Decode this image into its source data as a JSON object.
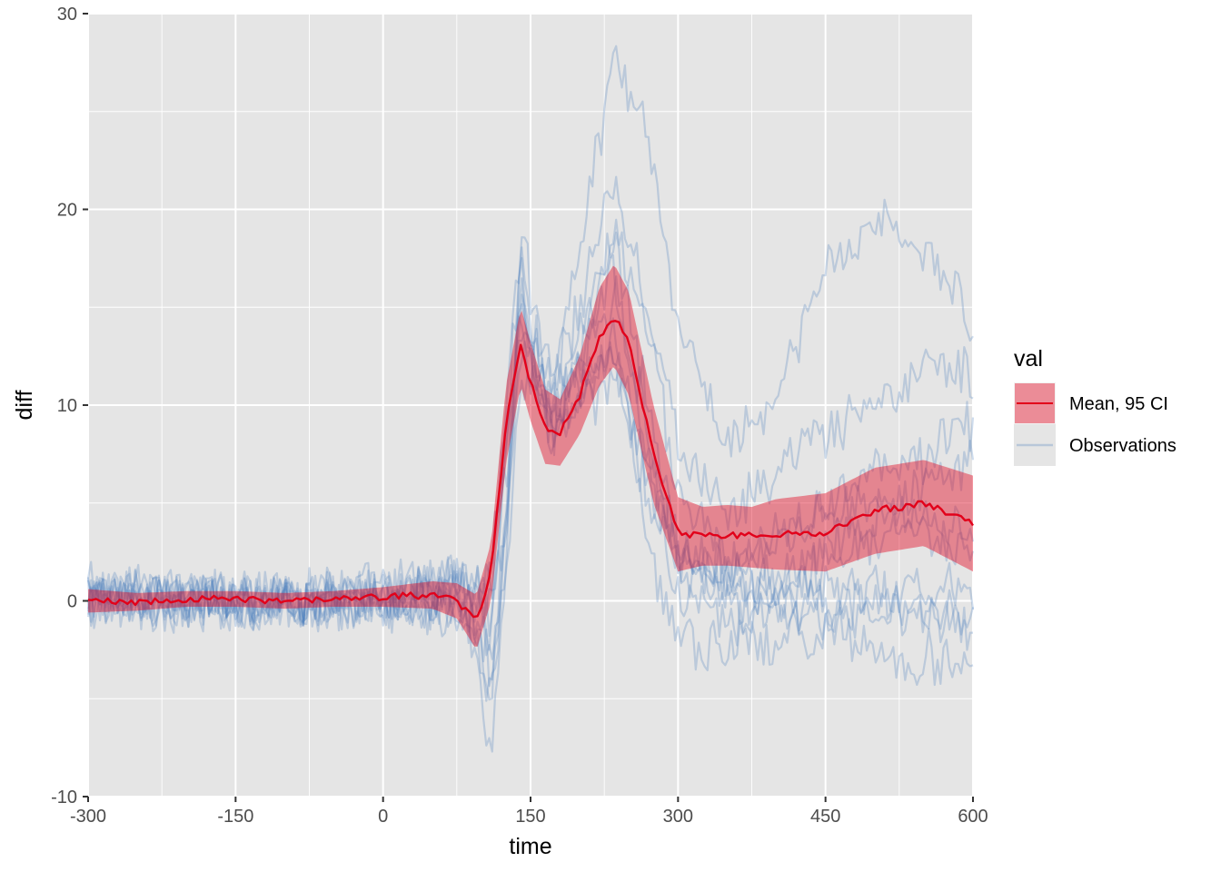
{
  "chart_data": {
    "type": "line",
    "xlabel": "time",
    "ylabel": "diff",
    "xlim": [
      -300,
      600
    ],
    "ylim": [
      -10,
      30
    ],
    "x_ticks": [
      -300,
      -150,
      0,
      150,
      300,
      450,
      600
    ],
    "x_tick_labels": [
      "-300",
      "-150",
      "0",
      "150",
      "300",
      "450",
      "600"
    ],
    "y_ticks": [
      -10,
      0,
      10,
      20,
      30
    ],
    "y_tick_labels": [
      "-10",
      "0",
      "10",
      "20",
      "30"
    ],
    "grid": true,
    "legend": {
      "title": "val",
      "position": "right",
      "entries": [
        {
          "label": "Mean, 95 CI",
          "color": "#e2001a",
          "fill": "#e2001a"
        },
        {
          "label": "Observations",
          "color": "#4f81bd"
        }
      ]
    },
    "colors": {
      "panel": "#e5e5e5",
      "grid": "#ffffff",
      "mean": "#e2001a",
      "ci": "#e2001a",
      "observations": "#4f81bd"
    },
    "mean": {
      "x": [
        -300,
        -250,
        -200,
        -150,
        -100,
        -50,
        0,
        50,
        75,
        95,
        110,
        125,
        140,
        150,
        165,
        180,
        200,
        220,
        235,
        250,
        275,
        300,
        325,
        350,
        375,
        400,
        450,
        500,
        550,
        600
      ],
      "y": [
        0.0,
        -0.1,
        0.1,
        0.1,
        0.0,
        0.1,
        0.2,
        0.3,
        0.0,
        -1.1,
        1.5,
        9.0,
        13.0,
        11.2,
        8.8,
        8.6,
        10.5,
        13.5,
        14.5,
        13.2,
        7.5,
        3.5,
        3.3,
        3.4,
        3.3,
        3.4,
        3.5,
        4.6,
        5.0,
        4.0
      ]
    },
    "ci": {
      "x": [
        -300,
        -250,
        -200,
        -150,
        -100,
        -50,
        0,
        50,
        75,
        95,
        110,
        125,
        140,
        150,
        165,
        180,
        200,
        220,
        235,
        250,
        275,
        300,
        325,
        350,
        375,
        400,
        450,
        500,
        550,
        600
      ],
      "lower": [
        -0.6,
        -0.5,
        -0.3,
        -0.3,
        -0.4,
        -0.3,
        -0.3,
        -0.4,
        -0.9,
        -2.5,
        0.0,
        7.0,
        11.0,
        9.2,
        7.0,
        6.9,
        8.5,
        11.0,
        12.0,
        10.5,
        5.0,
        1.5,
        1.8,
        1.8,
        1.7,
        1.6,
        1.5,
        2.4,
        2.8,
        1.5
      ],
      "upper": [
        0.6,
        0.4,
        0.5,
        0.5,
        0.4,
        0.5,
        0.7,
        1.0,
        0.9,
        0.3,
        3.0,
        11.0,
        15.0,
        13.2,
        10.8,
        10.3,
        12.5,
        16.0,
        17.2,
        15.8,
        10.0,
        5.3,
        4.8,
        4.9,
        4.8,
        5.2,
        5.5,
        6.8,
        7.2,
        6.4
      ]
    },
    "observations_shape": {
      "x": [
        -300,
        -200,
        -100,
        0,
        75,
        95,
        110,
        125,
        140,
        150,
        170,
        200,
        235,
        270,
        300,
        350,
        400,
        450,
        500,
        550,
        600
      ],
      "series": [
        {
          "y": [
            0.2,
            0.0,
            0.3,
            0.5,
            1.5,
            1.0,
            -2.0,
            8.0,
            18.5,
            16.0,
            10.0,
            18.0,
            28.0,
            24.0,
            14.0,
            8.0,
            10.0,
            17.0,
            19.5,
            18.0,
            14.0
          ]
        },
        {
          "y": [
            -0.2,
            0.1,
            -0.1,
            0.3,
            0.5,
            -1.0,
            -5.0,
            5.0,
            17.5,
            14.0,
            9.0,
            15.0,
            22.0,
            15.0,
            8.0,
            4.0,
            6.5,
            8.5,
            9.5,
            12.0,
            11.5
          ]
        },
        {
          "y": [
            0.5,
            0.2,
            0.0,
            0.2,
            0.0,
            -3.0,
            -8.5,
            2.0,
            15.5,
            13.0,
            8.0,
            13.0,
            19.0,
            14.0,
            6.0,
            2.0,
            3.0,
            5.0,
            6.5,
            7.5,
            9.0
          ]
        },
        {
          "y": [
            0.0,
            0.3,
            0.2,
            0.0,
            -0.5,
            -2.0,
            -5.5,
            4.0,
            16.5,
            12.0,
            8.5,
            12.0,
            15.5,
            9.0,
            2.5,
            0.5,
            1.0,
            3.0,
            4.5,
            6.0,
            7.5
          ]
        },
        {
          "y": [
            -0.4,
            -0.2,
            0.1,
            -0.1,
            0.5,
            0.0,
            2.0,
            10.0,
            18.0,
            14.0,
            12.0,
            14.0,
            17.0,
            7.0,
            2.0,
            1.0,
            0.5,
            2.0,
            3.0,
            4.0,
            3.0
          ]
        },
        {
          "y": [
            0.3,
            0.0,
            -0.2,
            0.4,
            1.0,
            0.5,
            0.0,
            6.0,
            15.0,
            12.5,
            10.0,
            11.0,
            13.0,
            6.0,
            2.0,
            1.5,
            1.0,
            0.5,
            0.0,
            0.5,
            0.2
          ]
        },
        {
          "y": [
            0.1,
            -0.1,
            0.0,
            -0.2,
            -0.4,
            -1.5,
            -2.0,
            3.0,
            13.0,
            12.0,
            9.5,
            9.5,
            11.5,
            5.0,
            0.5,
            -1.0,
            -0.5,
            -0.3,
            -0.5,
            -1.0,
            -1.2
          ]
        },
        {
          "y": [
            -0.1,
            0.2,
            0.1,
            0.2,
            0.3,
            -1.0,
            -3.5,
            2.0,
            12.0,
            11.0,
            9.0,
            10.0,
            14.0,
            3.0,
            -2.0,
            -2.5,
            -2.0,
            -1.5,
            -2.5,
            -3.0,
            -3.5
          ]
        },
        {
          "y": [
            0.2,
            -0.3,
            0.0,
            0.1,
            0.0,
            -0.5,
            -1.0,
            4.0,
            14.0,
            13.0,
            11.0,
            12.0,
            19.0,
            10.0,
            3.0,
            1.5,
            3.0,
            4.5,
            5.0,
            3.5,
            2.0
          ]
        },
        {
          "y": [
            0.0,
            0.1,
            -0.1,
            0.0,
            0.8,
            0.3,
            1.0,
            7.0,
            16.0,
            13.5,
            8.5,
            10.5,
            12.5,
            7.5,
            2.5,
            0.0,
            -0.5,
            -1.0,
            0.5,
            -0.5,
            -1.5
          ]
        }
      ]
    }
  }
}
